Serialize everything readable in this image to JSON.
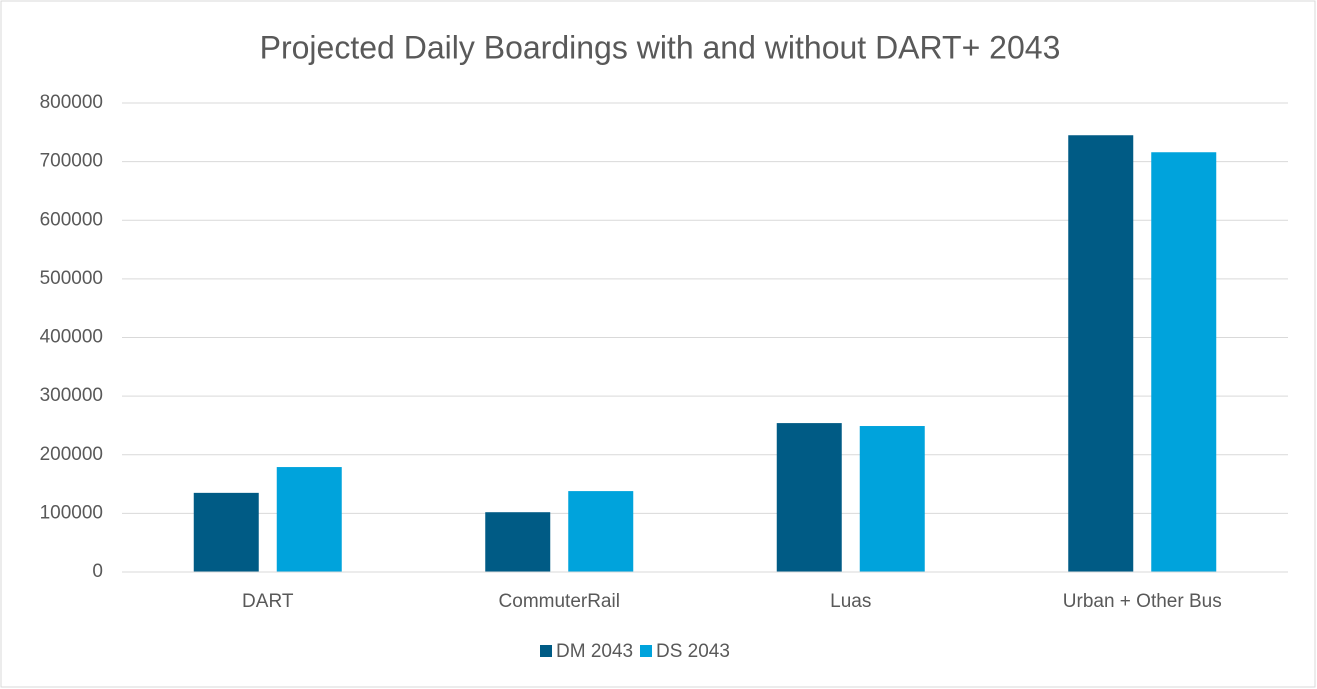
{
  "chart_data": {
    "type": "bar",
    "title": "Projected Daily Boardings with and without DART+ 2043",
    "categories": [
      "DART",
      "CommuterRail",
      "Luas",
      "Urban + Other Bus"
    ],
    "series": [
      {
        "name": "DM 2043",
        "color": "#005b85",
        "values": [
          135000,
          102000,
          254000,
          745000
        ]
      },
      {
        "name": "DS 2043",
        "color": "#00a3dc",
        "values": [
          179000,
          138000,
          249000,
          716000
        ]
      }
    ],
    "ylim": [
      0,
      800000
    ],
    "yticks": [
      0,
      100000,
      200000,
      300000,
      400000,
      500000,
      600000,
      700000,
      800000
    ],
    "grid": true,
    "legend": "bottom"
  }
}
